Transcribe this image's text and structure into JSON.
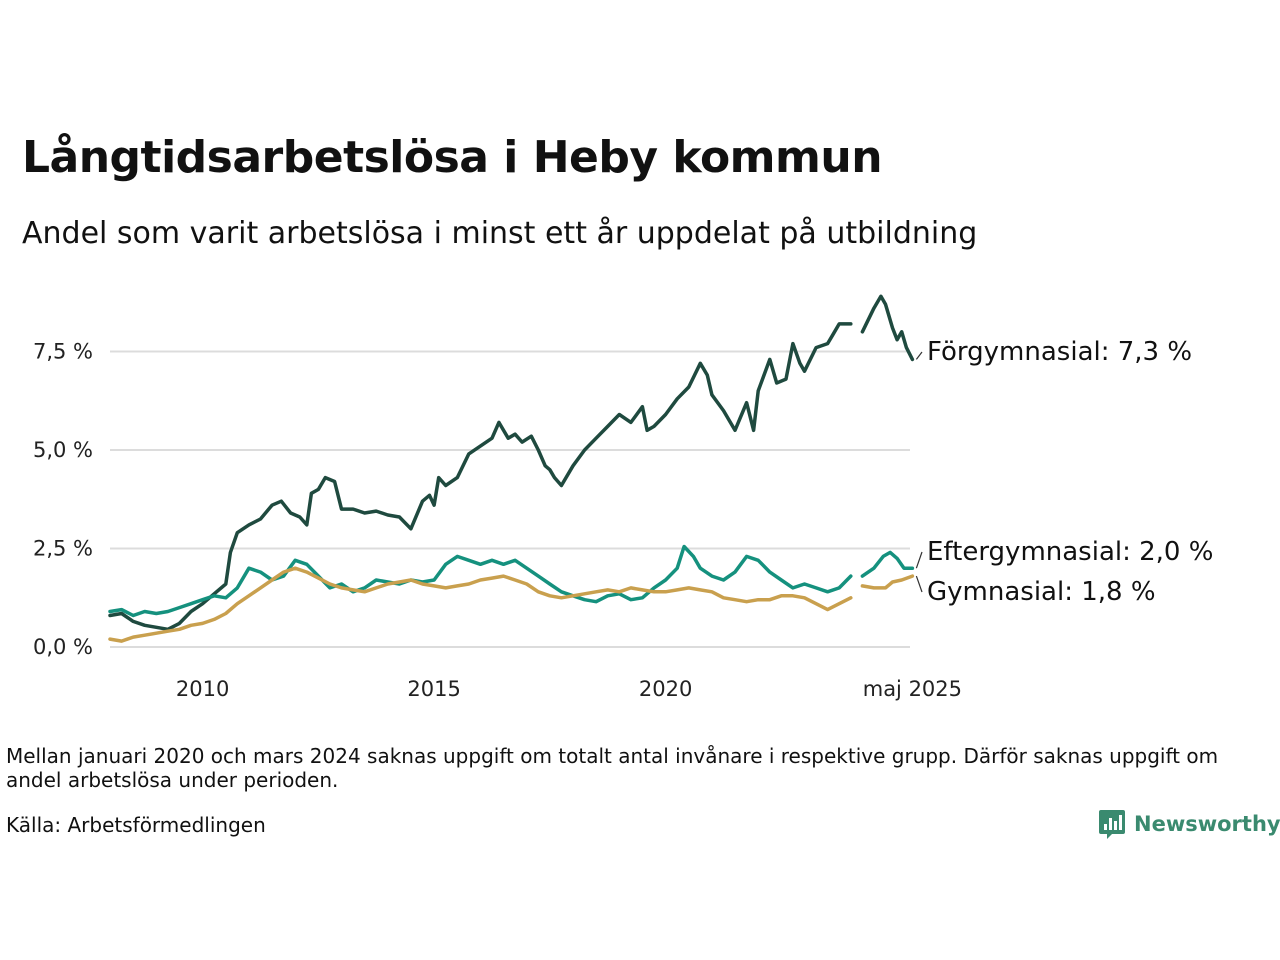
{
  "title": "Långtidsarbetslösa i Heby kommun",
  "subtitle": "Andel som varit arbetslösa i minst ett år uppdelat på utbildning",
  "footnote": "Mellan januari 2020 och mars 2024 saknas uppgift om totalt antal invånare i respektive grupp. Därför saknas uppgift om andel arbetslösa under perioden.",
  "source": "Källa: Arbetsförmedlingen",
  "brand": {
    "name": "Newsworthy",
    "icon": "newsworthy-logo-icon",
    "color": "#3a8a6f"
  },
  "chart_data": {
    "type": "line",
    "title": "Långtidsarbetslösa i Heby kommun",
    "subtitle": "Andel som varit arbetslösa i minst ett år uppdelat på utbildning",
    "x_ticks": [
      {
        "x": 2010,
        "label": "2010"
      },
      {
        "x": 2015,
        "label": "2015"
      },
      {
        "x": 2020,
        "label": "2020"
      },
      {
        "x": 2025.33,
        "label": "maj 2025"
      }
    ],
    "xlim": [
      2008.0,
      2025.4
    ],
    "y_ticks": [
      {
        "y": 0,
        "label": "0,0 %"
      },
      {
        "y": 2.5,
        "label": "2,5 %"
      },
      {
        "y": 5,
        "label": "5,0 %"
      },
      {
        "y": 7.5,
        "label": "7,5 %"
      }
    ],
    "ylim": [
      0,
      9.2
    ],
    "grid": true,
    "legend": "end-labels",
    "series": [
      {
        "name": "Förgymnasial",
        "end_label": "Förgymnasial: 7,3 %",
        "color": "#1f4a3f",
        "segments": [
          [
            [
              2008.0,
              0.8
            ],
            [
              2008.25,
              0.85
            ],
            [
              2008.5,
              0.65
            ],
            [
              2008.75,
              0.55
            ],
            [
              2009.0,
              0.5
            ],
            [
              2009.25,
              0.45
            ],
            [
              2009.5,
              0.6
            ],
            [
              2009.75,
              0.9
            ],
            [
              2010.0,
              1.1
            ],
            [
              2010.25,
              1.35
            ],
            [
              2010.5,
              1.6
            ],
            [
              2010.6,
              2.4
            ],
            [
              2010.75,
              2.9
            ],
            [
              2011.0,
              3.1
            ],
            [
              2011.25,
              3.25
            ],
            [
              2011.5,
              3.6
            ],
            [
              2011.7,
              3.7
            ],
            [
              2011.9,
              3.4
            ],
            [
              2012.1,
              3.3
            ],
            [
              2012.25,
              3.1
            ],
            [
              2012.35,
              3.9
            ],
            [
              2012.5,
              4.0
            ],
            [
              2012.65,
              4.3
            ],
            [
              2012.85,
              4.2
            ],
            [
              2013.0,
              3.5
            ],
            [
              2013.25,
              3.5
            ],
            [
              2013.5,
              3.4
            ],
            [
              2013.75,
              3.45
            ],
            [
              2014.0,
              3.35
            ],
            [
              2014.25,
              3.3
            ],
            [
              2014.5,
              3.0
            ],
            [
              2014.75,
              3.7
            ],
            [
              2014.9,
              3.85
            ],
            [
              2015.0,
              3.6
            ],
            [
              2015.1,
              4.3
            ],
            [
              2015.25,
              4.1
            ],
            [
              2015.5,
              4.3
            ],
            [
              2015.75,
              4.9
            ],
            [
              2016.0,
              5.1
            ],
            [
              2016.25,
              5.3
            ],
            [
              2016.4,
              5.7
            ],
            [
              2016.6,
              5.3
            ],
            [
              2016.75,
              5.4
            ],
            [
              2016.9,
              5.2
            ],
            [
              2017.1,
              5.35
            ],
            [
              2017.25,
              5.0
            ],
            [
              2017.4,
              4.6
            ],
            [
              2017.5,
              4.5
            ],
            [
              2017.6,
              4.3
            ],
            [
              2017.75,
              4.1
            ],
            [
              2018.0,
              4.6
            ],
            [
              2018.25,
              5.0
            ],
            [
              2018.5,
              5.3
            ],
            [
              2018.75,
              5.6
            ],
            [
              2019.0,
              5.9
            ],
            [
              2019.25,
              5.7
            ],
            [
              2019.5,
              6.1
            ],
            [
              2019.6,
              5.5
            ],
            [
              2019.75,
              5.6
            ],
            [
              2020.0,
              5.9
            ],
            [
              2020.25,
              6.3
            ],
            [
              2020.5,
              6.6
            ],
            [
              2020.75,
              7.2
            ],
            [
              2020.9,
              6.9
            ],
            [
              2021.0,
              6.4
            ],
            [
              2021.25,
              6.0
            ],
            [
              2021.5,
              5.5
            ],
            [
              2021.75,
              6.2
            ],
            [
              2021.9,
              5.5
            ],
            [
              2022.0,
              6.5
            ],
            [
              2022.25,
              7.3
            ],
            [
              2022.4,
              6.7
            ],
            [
              2022.6,
              6.8
            ],
            [
              2022.75,
              7.7
            ],
            [
              2022.9,
              7.2
            ],
            [
              2023.0,
              7.0
            ],
            [
              2023.25,
              7.6
            ],
            [
              2023.5,
              7.7
            ],
            [
              2023.6,
              7.9
            ],
            [
              2023.75,
              8.2
            ],
            [
              2024.0,
              8.2
            ]
          ],
          [
            [
              2024.25,
              8.0
            ],
            [
              2024.5,
              8.6
            ],
            [
              2024.65,
              8.9
            ],
            [
              2024.75,
              8.7
            ],
            [
              2024.9,
              8.1
            ],
            [
              2025.0,
              7.8
            ],
            [
              2025.1,
              8.0
            ],
            [
              2025.2,
              7.6
            ],
            [
              2025.33,
              7.3
            ]
          ]
        ]
      },
      {
        "name": "Eftergymnasial",
        "end_label": "Eftergymnasial: 2,0 %",
        "color": "#15917e",
        "segments": [
          [
            [
              2008.0,
              0.9
            ],
            [
              2008.25,
              0.95
            ],
            [
              2008.5,
              0.8
            ],
            [
              2008.75,
              0.9
            ],
            [
              2009.0,
              0.85
            ],
            [
              2009.25,
              0.9
            ],
            [
              2009.5,
              1.0
            ],
            [
              2009.75,
              1.1
            ],
            [
              2010.0,
              1.2
            ],
            [
              2010.25,
              1.3
            ],
            [
              2010.5,
              1.25
            ],
            [
              2010.75,
              1.5
            ],
            [
              2011.0,
              2.0
            ],
            [
              2011.25,
              1.9
            ],
            [
              2011.5,
              1.7
            ],
            [
              2011.75,
              1.8
            ],
            [
              2012.0,
              2.2
            ],
            [
              2012.25,
              2.1
            ],
            [
              2012.5,
              1.8
            ],
            [
              2012.75,
              1.5
            ],
            [
              2013.0,
              1.6
            ],
            [
              2013.25,
              1.4
            ],
            [
              2013.5,
              1.5
            ],
            [
              2013.75,
              1.7
            ],
            [
              2014.0,
              1.65
            ],
            [
              2014.25,
              1.6
            ],
            [
              2014.5,
              1.7
            ],
            [
              2014.75,
              1.65
            ],
            [
              2015.0,
              1.7
            ],
            [
              2015.25,
              2.1
            ],
            [
              2015.5,
              2.3
            ],
            [
              2015.75,
              2.2
            ],
            [
              2016.0,
              2.1
            ],
            [
              2016.25,
              2.2
            ],
            [
              2016.5,
              2.1
            ],
            [
              2016.75,
              2.2
            ],
            [
              2017.0,
              2.0
            ],
            [
              2017.25,
              1.8
            ],
            [
              2017.5,
              1.6
            ],
            [
              2017.75,
              1.4
            ],
            [
              2018.0,
              1.3
            ],
            [
              2018.25,
              1.2
            ],
            [
              2018.5,
              1.15
            ],
            [
              2018.75,
              1.3
            ],
            [
              2019.0,
              1.35
            ],
            [
              2019.25,
              1.2
            ],
            [
              2019.5,
              1.25
            ],
            [
              2019.75,
              1.5
            ],
            [
              2020.0,
              1.7
            ],
            [
              2020.25,
              2.0
            ],
            [
              2020.4,
              2.55
            ],
            [
              2020.6,
              2.3
            ],
            [
              2020.75,
              2.0
            ],
            [
              2021.0,
              1.8
            ],
            [
              2021.25,
              1.7
            ],
            [
              2021.5,
              1.9
            ],
            [
              2021.75,
              2.3
            ],
            [
              2022.0,
              2.2
            ],
            [
              2022.25,
              1.9
            ],
            [
              2022.5,
              1.7
            ],
            [
              2022.75,
              1.5
            ],
            [
              2023.0,
              1.6
            ],
            [
              2023.25,
              1.5
            ],
            [
              2023.5,
              1.4
            ],
            [
              2023.75,
              1.5
            ],
            [
              2024.0,
              1.8
            ]
          ],
          [
            [
              2024.25,
              1.8
            ],
            [
              2024.5,
              2.0
            ],
            [
              2024.7,
              2.3
            ],
            [
              2024.85,
              2.4
            ],
            [
              2025.0,
              2.25
            ],
            [
              2025.15,
              2.0
            ],
            [
              2025.33,
              2.0
            ]
          ]
        ]
      },
      {
        "name": "Gymnasial",
        "end_label": "Gymnasial: 1,8 %",
        "color": "#c9a04e",
        "segments": [
          [
            [
              2008.0,
              0.2
            ],
            [
              2008.25,
              0.15
            ],
            [
              2008.5,
              0.25
            ],
            [
              2008.75,
              0.3
            ],
            [
              2009.0,
              0.35
            ],
            [
              2009.25,
              0.4
            ],
            [
              2009.5,
              0.45
            ],
            [
              2009.75,
              0.55
            ],
            [
              2010.0,
              0.6
            ],
            [
              2010.25,
              0.7
            ],
            [
              2010.5,
              0.85
            ],
            [
              2010.75,
              1.1
            ],
            [
              2011.0,
              1.3
            ],
            [
              2011.25,
              1.5
            ],
            [
              2011.5,
              1.7
            ],
            [
              2011.75,
              1.9
            ],
            [
              2012.0,
              2.0
            ],
            [
              2012.25,
              1.9
            ],
            [
              2012.5,
              1.75
            ],
            [
              2012.75,
              1.6
            ],
            [
              2013.0,
              1.5
            ],
            [
              2013.25,
              1.45
            ],
            [
              2013.5,
              1.4
            ],
            [
              2013.75,
              1.5
            ],
            [
              2014.0,
              1.6
            ],
            [
              2014.25,
              1.65
            ],
            [
              2014.5,
              1.7
            ],
            [
              2014.75,
              1.6
            ],
            [
              2015.0,
              1.55
            ],
            [
              2015.25,
              1.5
            ],
            [
              2015.5,
              1.55
            ],
            [
              2015.75,
              1.6
            ],
            [
              2016.0,
              1.7
            ],
            [
              2016.25,
              1.75
            ],
            [
              2016.5,
              1.8
            ],
            [
              2016.75,
              1.7
            ],
            [
              2017.0,
              1.6
            ],
            [
              2017.25,
              1.4
            ],
            [
              2017.5,
              1.3
            ],
            [
              2017.75,
              1.25
            ],
            [
              2018.0,
              1.3
            ],
            [
              2018.25,
              1.35
            ],
            [
              2018.5,
              1.4
            ],
            [
              2018.75,
              1.45
            ],
            [
              2019.0,
              1.4
            ],
            [
              2019.25,
              1.5
            ],
            [
              2019.5,
              1.45
            ],
            [
              2019.75,
              1.4
            ],
            [
              2020.0,
              1.4
            ],
            [
              2020.25,
              1.45
            ],
            [
              2020.5,
              1.5
            ],
            [
              2020.75,
              1.45
            ],
            [
              2021.0,
              1.4
            ],
            [
              2021.25,
              1.25
            ],
            [
              2021.5,
              1.2
            ],
            [
              2021.75,
              1.15
            ],
            [
              2022.0,
              1.2
            ],
            [
              2022.25,
              1.2
            ],
            [
              2022.5,
              1.3
            ],
            [
              2022.75,
              1.3
            ],
            [
              2023.0,
              1.25
            ],
            [
              2023.25,
              1.1
            ],
            [
              2023.5,
              0.95
            ],
            [
              2023.75,
              1.1
            ],
            [
              2024.0,
              1.25
            ]
          ],
          [
            [
              2024.25,
              1.55
            ],
            [
              2024.5,
              1.5
            ],
            [
              2024.75,
              1.5
            ],
            [
              2024.9,
              1.65
            ],
            [
              2025.1,
              1.7
            ],
            [
              2025.33,
              1.8
            ]
          ]
        ]
      }
    ]
  }
}
